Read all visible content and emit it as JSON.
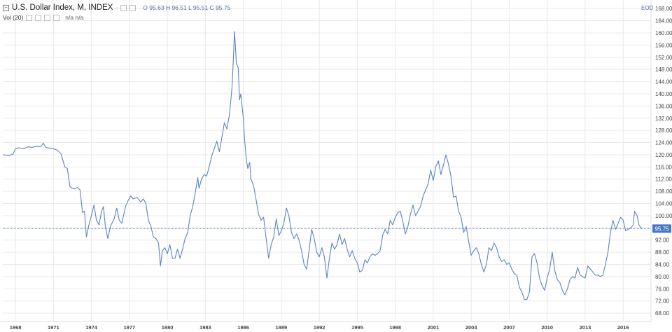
{
  "legend": {
    "title": "U.S. Dollar Index, M, INDEX",
    "ohlc": {
      "o_label": "O",
      "o": "95.63",
      "h_label": "H",
      "h": "96.51",
      "l_label": "L",
      "l": "95.51",
      "c_label": "C",
      "c": "95.75"
    },
    "vol_label": "Vol (20)",
    "vol_value": "n/a",
    "vol_value2": "n/a"
  },
  "eod_label": "EOD",
  "colors": {
    "line": "#5b84c4",
    "price_line": "#6a93cf",
    "price_tag": "#4a78c0",
    "grid": "#e9e9e9",
    "axis_text": "#444444"
  },
  "chart_data": {
    "type": "line",
    "title": "U.S. Dollar Index, M, INDEX",
    "xlabel": "",
    "ylabel": "",
    "xlim": [
      1967.0,
      2018.2
    ],
    "ylim": [
      65.5,
      168.5
    ],
    "x_ticks": [
      "1968",
      "1971",
      "1974",
      "1977",
      "1980",
      "1983",
      "1986",
      "1989",
      "1992",
      "1995",
      "1998",
      "2001",
      "2004",
      "2007",
      "2010",
      "2013",
      "2016"
    ],
    "y_ticks": [
      "68.00",
      "72.00",
      "76.00",
      "80.00",
      "84.00",
      "88.00",
      "92.00",
      "96.00",
      "100.00",
      "104.00",
      "108.00",
      "112.00",
      "116.00",
      "120.00",
      "124.00",
      "128.00",
      "132.00",
      "136.00",
      "140.00",
      "144.00",
      "148.00",
      "152.00",
      "156.00",
      "160.00",
      "164.00",
      "168.00"
    ],
    "last_price": 95.75,
    "last_price_label": "95.75",
    "series": [
      {
        "points": [
          [
            1967.0,
            120.0
          ],
          [
            1967.5,
            119.8
          ],
          [
            1967.8,
            120.2
          ],
          [
            1968.0,
            122.0
          ],
          [
            1968.3,
            122.3
          ],
          [
            1968.6,
            122.0
          ],
          [
            1969.0,
            122.6
          ],
          [
            1969.3,
            122.4
          ],
          [
            1969.7,
            122.8
          ],
          [
            1970.0,
            122.7
          ],
          [
            1970.2,
            123.8
          ],
          [
            1970.4,
            122.4
          ],
          [
            1970.7,
            122.2
          ],
          [
            1971.0,
            122.0
          ],
          [
            1971.3,
            121.5
          ],
          [
            1971.6,
            120.3
          ],
          [
            1971.9,
            116.0
          ],
          [
            1972.1,
            115.5
          ],
          [
            1972.3,
            109.5
          ],
          [
            1972.6,
            108.8
          ],
          [
            1972.9,
            109.3
          ],
          [
            1973.1,
            108.5
          ],
          [
            1973.3,
            101.0
          ],
          [
            1973.45,
            101.5
          ],
          [
            1973.6,
            93.0
          ],
          [
            1973.8,
            97.0
          ],
          [
            1974.0,
            100.0
          ],
          [
            1974.2,
            103.5
          ],
          [
            1974.4,
            98.5
          ],
          [
            1974.6,
            97.0
          ],
          [
            1974.8,
            101.5
          ],
          [
            1974.95,
            103.0
          ],
          [
            1975.1,
            96.5
          ],
          [
            1975.3,
            92.5
          ],
          [
            1975.5,
            96.5
          ],
          [
            1975.8,
            99.0
          ],
          [
            1976.0,
            102.5
          ],
          [
            1976.2,
            98.5
          ],
          [
            1976.4,
            97.5
          ],
          [
            1976.7,
            103.0
          ],
          [
            1976.9,
            105.0
          ],
          [
            1977.1,
            106.5
          ],
          [
            1977.3,
            105.5
          ],
          [
            1977.6,
            106.0
          ],
          [
            1977.9,
            104.5
          ],
          [
            1978.1,
            105.5
          ],
          [
            1978.3,
            104.0
          ],
          [
            1978.5,
            98.5
          ],
          [
            1978.7,
            96.5
          ],
          [
            1978.9,
            93.0
          ],
          [
            1979.1,
            92.5
          ],
          [
            1979.3,
            91.0
          ],
          [
            1979.45,
            83.5
          ],
          [
            1979.6,
            88.5
          ],
          [
            1979.8,
            89.5
          ],
          [
            1980.0,
            87.5
          ],
          [
            1980.2,
            90.5
          ],
          [
            1980.4,
            86.0
          ],
          [
            1980.6,
            86.0
          ],
          [
            1980.8,
            89.0
          ],
          [
            1981.0,
            86.0
          ],
          [
            1981.2,
            89.0
          ],
          [
            1981.4,
            92.5
          ],
          [
            1981.6,
            94.5
          ],
          [
            1981.8,
            100.0
          ],
          [
            1982.0,
            103.0
          ],
          [
            1982.2,
            107.5
          ],
          [
            1982.4,
            112.5
          ],
          [
            1982.5,
            109.0
          ],
          [
            1982.7,
            112.0
          ],
          [
            1982.9,
            113.5
          ],
          [
            1983.1,
            113.0
          ],
          [
            1983.3,
            116.0
          ],
          [
            1983.5,
            119.5
          ],
          [
            1983.7,
            122.0
          ],
          [
            1983.9,
            124.5
          ],
          [
            1984.1,
            121.0
          ],
          [
            1984.3,
            125.5
          ],
          [
            1984.5,
            130.5
          ],
          [
            1984.7,
            128.5
          ],
          [
            1984.9,
            133.0
          ],
          [
            1985.1,
            142.0
          ],
          [
            1985.2,
            150.5
          ],
          [
            1985.3,
            160.5
          ],
          [
            1985.45,
            150.0
          ],
          [
            1985.6,
            148.5
          ],
          [
            1985.7,
            138.0
          ],
          [
            1985.8,
            140.0
          ],
          [
            1986.0,
            132.0
          ],
          [
            1986.1,
            125.0
          ],
          [
            1986.25,
            118.0
          ],
          [
            1986.35,
            115.5
          ],
          [
            1986.5,
            117.5
          ],
          [
            1986.6,
            112.0
          ],
          [
            1986.8,
            110.0
          ],
          [
            1987.0,
            105.5
          ],
          [
            1987.2,
            100.5
          ],
          [
            1987.4,
            98.5
          ],
          [
            1987.6,
            99.5
          ],
          [
            1987.8,
            92.5
          ],
          [
            1988.0,
            86.0
          ],
          [
            1988.2,
            90.5
          ],
          [
            1988.4,
            93.0
          ],
          [
            1988.6,
            99.0
          ],
          [
            1988.8,
            93.5
          ],
          [
            1989.0,
            95.0
          ],
          [
            1989.2,
            97.5
          ],
          [
            1989.4,
            102.5
          ],
          [
            1989.6,
            100.0
          ],
          [
            1989.8,
            94.5
          ],
          [
            1990.0,
            92.5
          ],
          [
            1990.2,
            94.0
          ],
          [
            1990.4,
            92.0
          ],
          [
            1990.6,
            88.5
          ],
          [
            1990.8,
            84.0
          ],
          [
            1991.0,
            82.5
          ],
          [
            1991.2,
            89.0
          ],
          [
            1991.4,
            95.5
          ],
          [
            1991.6,
            92.5
          ],
          [
            1991.8,
            88.0
          ],
          [
            1992.0,
            86.5
          ],
          [
            1992.2,
            89.5
          ],
          [
            1992.4,
            86.5
          ],
          [
            1992.6,
            79.5
          ],
          [
            1992.8,
            86.0
          ],
          [
            1993.0,
            91.0
          ],
          [
            1993.2,
            89.0
          ],
          [
            1993.4,
            90.5
          ],
          [
            1993.6,
            94.0
          ],
          [
            1993.8,
            90.5
          ],
          [
            1994.0,
            92.5
          ],
          [
            1994.2,
            89.0
          ],
          [
            1994.4,
            86.5
          ],
          [
            1994.6,
            88.5
          ],
          [
            1994.8,
            86.0
          ],
          [
            1995.0,
            84.5
          ],
          [
            1995.2,
            81.5
          ],
          [
            1995.4,
            82.0
          ],
          [
            1995.6,
            85.5
          ],
          [
            1995.8,
            84.5
          ],
          [
            1996.0,
            86.5
          ],
          [
            1996.2,
            87.5
          ],
          [
            1996.4,
            87.0
          ],
          [
            1996.6,
            87.5
          ],
          [
            1996.8,
            88.5
          ],
          [
            1997.0,
            93.5
          ],
          [
            1997.2,
            95.5
          ],
          [
            1997.4,
            94.0
          ],
          [
            1997.6,
            98.5
          ],
          [
            1997.8,
            97.0
          ],
          [
            1998.0,
            99.5
          ],
          [
            1998.2,
            101.0
          ],
          [
            1998.4,
            101.5
          ],
          [
            1998.6,
            98.0
          ],
          [
            1998.8,
            94.0
          ],
          [
            1999.0,
            96.5
          ],
          [
            1999.2,
            100.5
          ],
          [
            1999.4,
            103.5
          ],
          [
            1999.6,
            100.0
          ],
          [
            1999.8,
            101.5
          ],
          [
            2000.0,
            103.0
          ],
          [
            2000.2,
            106.5
          ],
          [
            2000.4,
            108.5
          ],
          [
            2000.6,
            110.5
          ],
          [
            2000.8,
            115.0
          ],
          [
            2001.0,
            111.5
          ],
          [
            2001.2,
            116.0
          ],
          [
            2001.4,
            118.0
          ],
          [
            2001.6,
            113.5
          ],
          [
            2001.8,
            116.5
          ],
          [
            2002.0,
            120.0
          ],
          [
            2002.2,
            117.0
          ],
          [
            2002.4,
            113.0
          ],
          [
            2002.6,
            106.0
          ],
          [
            2002.8,
            106.5
          ],
          [
            2003.0,
            101.5
          ],
          [
            2003.2,
            99.5
          ],
          [
            2003.4,
            94.5
          ],
          [
            2003.6,
            96.5
          ],
          [
            2003.8,
            91.5
          ],
          [
            2004.0,
            87.0
          ],
          [
            2004.2,
            88.5
          ],
          [
            2004.4,
            89.5
          ],
          [
            2004.6,
            87.5
          ],
          [
            2004.8,
            84.0
          ],
          [
            2005.0,
            81.5
          ],
          [
            2005.2,
            84.0
          ],
          [
            2005.4,
            89.5
          ],
          [
            2005.6,
            88.5
          ],
          [
            2005.8,
            91.0
          ],
          [
            2006.0,
            89.5
          ],
          [
            2006.2,
            86.5
          ],
          [
            2006.4,
            85.0
          ],
          [
            2006.6,
            85.5
          ],
          [
            2006.8,
            84.0
          ],
          [
            2007.0,
            84.5
          ],
          [
            2007.2,
            82.5
          ],
          [
            2007.4,
            81.0
          ],
          [
            2007.6,
            80.5
          ],
          [
            2007.8,
            76.5
          ],
          [
            2008.0,
            75.0
          ],
          [
            2008.2,
            72.5
          ],
          [
            2008.4,
            72.5
          ],
          [
            2008.6,
            75.0
          ],
          [
            2008.8,
            86.5
          ],
          [
            2009.0,
            87.5
          ],
          [
            2009.2,
            84.5
          ],
          [
            2009.4,
            79.5
          ],
          [
            2009.6,
            77.0
          ],
          [
            2009.8,
            75.5
          ],
          [
            2010.0,
            79.5
          ],
          [
            2010.2,
            82.5
          ],
          [
            2010.4,
            88.0
          ],
          [
            2010.6,
            82.0
          ],
          [
            2010.8,
            79.0
          ],
          [
            2011.0,
            78.0
          ],
          [
            2011.2,
            75.5
          ],
          [
            2011.4,
            74.0
          ],
          [
            2011.6,
            76.0
          ],
          [
            2011.8,
            79.0
          ],
          [
            2012.0,
            80.0
          ],
          [
            2012.2,
            79.5
          ],
          [
            2012.4,
            83.0
          ],
          [
            2012.6,
            80.5
          ],
          [
            2012.8,
            80.0
          ],
          [
            2013.0,
            79.5
          ],
          [
            2013.2,
            83.5
          ],
          [
            2013.4,
            82.5
          ],
          [
            2013.6,
            81.5
          ],
          [
            2013.8,
            80.5
          ],
          [
            2014.0,
            80.5
          ],
          [
            2014.2,
            80.0
          ],
          [
            2014.4,
            80.5
          ],
          [
            2014.6,
            84.0
          ],
          [
            2014.8,
            88.0
          ],
          [
            2015.0,
            94.5
          ],
          [
            2015.2,
            98.5
          ],
          [
            2015.4,
            95.5
          ],
          [
            2015.6,
            97.5
          ],
          [
            2015.8,
            99.5
          ],
          [
            2016.0,
            98.5
          ],
          [
            2016.2,
            95.0
          ],
          [
            2016.4,
            95.5
          ],
          [
            2016.6,
            96.0
          ],
          [
            2016.8,
            97.0
          ],
          [
            2016.9,
            101.5
          ],
          [
            2017.1,
            100.0
          ],
          [
            2017.25,
            97.0
          ],
          [
            2017.4,
            96.0
          ],
          [
            2017.5,
            95.75
          ]
        ]
      }
    ]
  }
}
